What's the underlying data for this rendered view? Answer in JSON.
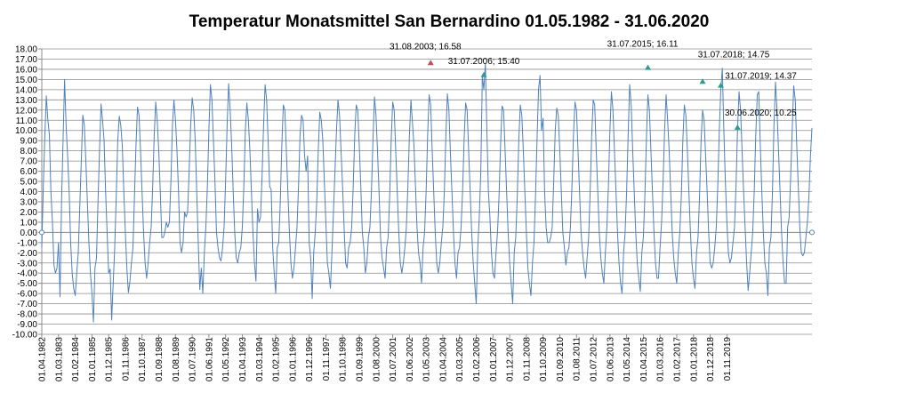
{
  "chart_data": {
    "type": "line",
    "title": "Temperatur Monatsmittel San Bernardino 01.05.1982 - 31.06.2020",
    "xlabel": "",
    "ylabel": "",
    "ylim": [
      -10,
      18
    ],
    "ytick_step": 1,
    "grid": true,
    "legend": "none",
    "series_color": "#4f81bd",
    "x_start": "1982-04",
    "x_end": "2020-06",
    "x_tick_labels": [
      "01.04.1982",
      "01.03.1983",
      "01.02.1984",
      "01.01.1985",
      "01.12.1985",
      "01.11.1986",
      "01.10.1987",
      "01.09.1988",
      "01.08.1989",
      "01.07.1990",
      "01.06.1991",
      "01.05.1992",
      "01.04.1993",
      "01.03.1994",
      "01.02.1995",
      "01.01.1996",
      "01.12.1996",
      "01.11.1997",
      "01.10.1998",
      "01.09.1999",
      "01.08.2000",
      "01.07.2001",
      "01.06.2002",
      "01.05.2003",
      "01.04.2004",
      "01.03.2005",
      "01.02.2006",
      "01.01.2007",
      "01.12.2007",
      "01.11.2008",
      "01.10.2009",
      "01.09.2010",
      "01.08.2011",
      "01.07.2012",
      "01.06.2013",
      "01.05.2014",
      "01.04.2015",
      "01.03.2016",
      "01.02.2017",
      "01.01.2018",
      "01.12.2018",
      "01.11.2019"
    ],
    "series": [
      {
        "values": [
          -1.5,
          4.5,
          9.5,
          13.4,
          11.0,
          9.6,
          4.0,
          1.0,
          -3.2,
          -4.0,
          -3.5,
          -1.0,
          -6.3,
          3.0,
          9.0,
          15.0,
          10.5,
          7.5,
          4.0,
          -1.0,
          -4.0,
          -5.5,
          -6.2,
          -4.0,
          -2.0,
          2.5,
          7.0,
          11.5,
          10.5,
          7.0,
          3.0,
          -1.0,
          -4.0,
          -6.0,
          -8.8,
          -3.5,
          -2.5,
          3.0,
          8.0,
          12.6,
          11.0,
          9.0,
          4.0,
          0.0,
          -4.0,
          -3.6,
          -8.6,
          -5.0,
          -1.5,
          3.5,
          9.0,
          11.4,
          10.5,
          8.5,
          4.0,
          0.0,
          -3.5,
          -5.9,
          -4.8,
          -3.0,
          -1.5,
          3.5,
          8.5,
          12.3,
          11.5,
          8.0,
          4.0,
          0.0,
          -3.0,
          -4.5,
          -3.0,
          -1.0,
          0.5,
          4.5,
          9.5,
          12.8,
          11.0,
          8.0,
          4.0,
          -0.5,
          -0.5,
          0.0,
          1.0,
          0.5,
          1.0,
          5.0,
          10.5,
          13.0,
          11.0,
          8.0,
          4.0,
          -1.0,
          -2.0,
          -1.0,
          2.0,
          1.5,
          2.0,
          6.0,
          10.5,
          13.2,
          12.0,
          9.0,
          4.0,
          -1.0,
          -5.6,
          -3.5,
          -6.0,
          -2.0,
          0.5,
          4.5,
          10.0,
          14.5,
          13.0,
          9.0,
          5.0,
          0.0,
          -1.5,
          -2.5,
          -2.8,
          -1.5,
          0.5,
          5.0,
          10.5,
          14.6,
          12.0,
          8.5,
          4.0,
          0.0,
          -2.5,
          -3.0,
          -2.0,
          -1.5,
          0.5,
          4.5,
          10.0,
          12.7,
          11.0,
          8.0,
          4.0,
          0.0,
          -3.0,
          -4.8,
          2.3,
          1.0,
          1.5,
          5.5,
          10.5,
          14.5,
          13.0,
          9.0,
          4.5,
          4.2,
          -1.5,
          -4.0,
          -6.0,
          -1.5,
          -1.0,
          3.0,
          8.5,
          12.5,
          12.0,
          8.0,
          4.0,
          0.0,
          -3.0,
          -4.5,
          -3.5,
          -1.5,
          0.5,
          4.5,
          9.5,
          11.5,
          11.0,
          7.5,
          6.0,
          7.5,
          -1.0,
          -2.5,
          -6.5,
          -2.0,
          0.0,
          3.0,
          8.0,
          11.8,
          11.0,
          9.0,
          5.0,
          1.0,
          -3.0,
          -4.0,
          -5.5,
          -2.0,
          2.0,
          6.0,
          10.0,
          13.0,
          11.5,
          8.0,
          4.5,
          0.5,
          -3.0,
          -3.5,
          -1.5,
          -1.0,
          0.5,
          4.5,
          9.5,
          12.5,
          12.0,
          8.5,
          4.5,
          0.0,
          -1.5,
          -4.0,
          -3.0,
          -0.5,
          0.5,
          4.0,
          9.0,
          13.3,
          11.5,
          8.0,
          4.0,
          -0.5,
          -2.5,
          -3.5,
          -4.5,
          -1.5,
          -0.5,
          3.5,
          9.0,
          12.8,
          12.0,
          8.0,
          4.0,
          0.0,
          -3.0,
          -4.0,
          -3.0,
          -1.5,
          0.5,
          4.5,
          9.5,
          13.0,
          10.8,
          8.5,
          4.5,
          0.5,
          -2.0,
          -3.0,
          -5.0,
          -1.5,
          0.0,
          4.0,
          9.5,
          13.5,
          12.5,
          8.0,
          4.0,
          0.0,
          -3.0,
          -4.0,
          -3.0,
          -1.0,
          0.5,
          4.0,
          9.5,
          13.6,
          12.0,
          7.7,
          4.0,
          0.0,
          -3.0,
          -4.5,
          -2.0,
          -1.5,
          0.5,
          4.0,
          9.0,
          12.7,
          12.0,
          8.0,
          4.0,
          0.0,
          -3.0,
          -5.0,
          -7.0,
          -1.5,
          1.5,
          6.0,
          15.3,
          14.0,
          16.58,
          10.0,
          4.0,
          1.5,
          -2.0,
          -4.0,
          -4.5,
          -2.0,
          0.0,
          3.5,
          8.5,
          12.4,
          12.0,
          8.0,
          4.0,
          0.0,
          -3.0,
          -5.0,
          -7.0,
          -2.0,
          -0.5,
          3.5,
          9.0,
          12.5,
          11.5,
          8.0,
          4.0,
          0.0,
          -3.5,
          -5.0,
          -6.2,
          -3.0,
          -1.0,
          3.5,
          9.0,
          14.0,
          15.4,
          10.0,
          11.2,
          4.0,
          0.5,
          -1.0,
          -1.0,
          -0.5,
          0.5,
          5.0,
          10.0,
          12.2,
          11.5,
          8.0,
          4.0,
          0.0,
          -1.5,
          -3.2,
          -2.0,
          -1.5,
          0.5,
          4.5,
          9.5,
          12.8,
          12.0,
          8.0,
          4.0,
          0.0,
          -2.0,
          -3.5,
          -4.5,
          -2.5,
          -0.5,
          4.0,
          9.5,
          13.0,
          12.5,
          8.0,
          4.0,
          0.0,
          -2.5,
          -4.0,
          -5.0,
          -2.0,
          0.5,
          4.5,
          10.0,
          13.8,
          12.0,
          8.0,
          4.0,
          0.0,
          -3.0,
          -5.0,
          -6.0,
          -2.0,
          0.0,
          4.0,
          9.5,
          14.5,
          12.5,
          8.0,
          4.0,
          0.0,
          -3.0,
          -4.5,
          -5.8,
          -2.0,
          -0.5,
          3.5,
          9.0,
          13.5,
          12.0,
          8.0,
          4.0,
          0.0,
          -3.0,
          -4.5,
          -4.5,
          -1.5,
          1.0,
          5.0,
          10.0,
          13.5,
          11.0,
          8.0,
          4.0,
          0.0,
          -2.5,
          -4.0,
          -5.0,
          -2.0,
          0.0,
          3.5,
          9.0,
          12.5,
          11.5,
          8.0,
          4.0,
          0.0,
          -3.0,
          -4.5,
          -5.5,
          -2.0,
          -0.5,
          3.5,
          9.0,
          12.0,
          11.0,
          7.5,
          4.0,
          0.0,
          -3.0,
          -3.5,
          -3.0,
          -1.5,
          0.5,
          4.5,
          10.0,
          14.0,
          16.11,
          10.0,
          5.0,
          1.0,
          -2.0,
          -3.0,
          -2.5,
          -1.0,
          0.5,
          4.5,
          10.0,
          13.8,
          12.0,
          8.0,
          4.0,
          0.5,
          -3.0,
          -5.7,
          -4.0,
          -2.0,
          0.0,
          4.0,
          9.5,
          13.5,
          13.8,
          8.5,
          4.0,
          0.0,
          -3.0,
          -4.0,
          -6.2,
          -1.5,
          -0.5,
          4.0,
          10.5,
          14.75,
          12.0,
          8.0,
          4.0,
          0.0,
          -3.0,
          -5.0,
          -5.0,
          0.5,
          1.5,
          5.5,
          10.0,
          14.37,
          13.0,
          8.5,
          4.5,
          0.5,
          -2.0,
          -2.3,
          -2.0,
          -0.5,
          1.0,
          3.5,
          7.5,
          10.25
        ]
      }
    ],
    "annotations": [
      {
        "date": "31.08.2003",
        "value": 16.58,
        "label": "31.08.2003; 16.58",
        "marker_color": "#c0504d"
      },
      {
        "date": "31.07.2006",
        "value": 15.4,
        "label": "31.07.2006; 15.40",
        "marker_color": "#2e9b8f"
      },
      {
        "date": "31.07.2015",
        "value": 16.11,
        "label": "31.07.2015; 16.11",
        "marker_color": "#2e9b8f"
      },
      {
        "date": "31.07.2018",
        "value": 14.75,
        "label": "31.07.2018; 14.75",
        "marker_color": "#2e9b8f"
      },
      {
        "date": "31.07.2019",
        "value": 14.37,
        "label": "31.07.2019; 14.37",
        "marker_color": "#2e9b8f"
      },
      {
        "date": "30.06.2020",
        "value": 10.25,
        "label": "30.06.2020; 10.25",
        "marker_color": "#2e9b8f"
      }
    ]
  }
}
